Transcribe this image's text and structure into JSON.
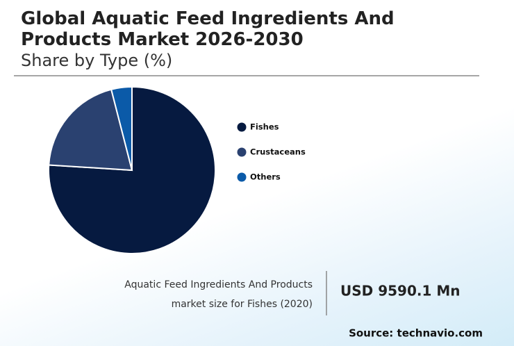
{
  "chart_data": {
    "type": "pie",
    "title": "Global Aquatic Feed Ingredients And Products Market 2026-2030",
    "subtitle": "Share by Type (%)",
    "categories": [
      "Fishes",
      "Crustaceans",
      "Others"
    ],
    "values": [
      76,
      20,
      4
    ],
    "colors": [
      "#061a40",
      "#2a4170",
      "#0b5aa8"
    ],
    "annotation": {
      "label": [
        "Aquatic Feed Ingredients And Products",
        "market size for Fishes (2020)"
      ],
      "value": "USD 9590.1 Mn"
    },
    "source": "Source: technavio.com"
  }
}
